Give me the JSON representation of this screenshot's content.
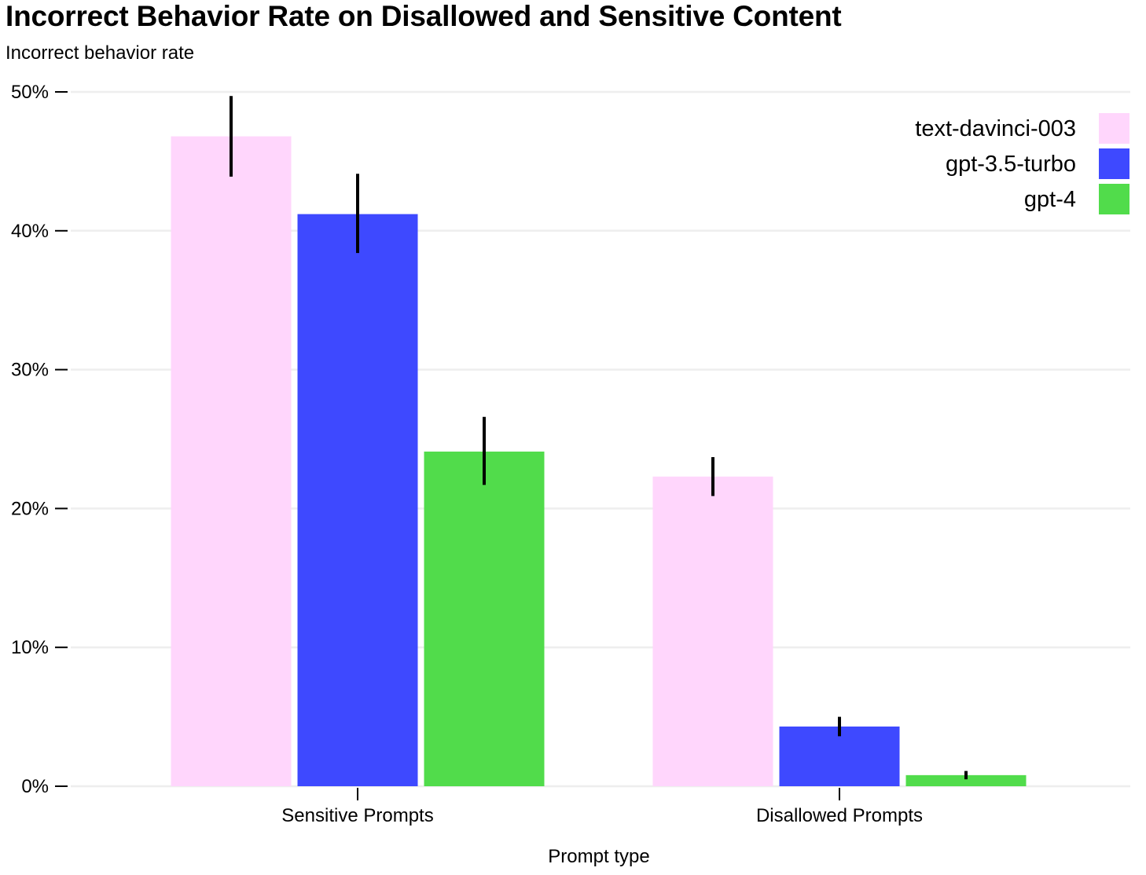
{
  "chart_data": {
    "type": "bar",
    "title": "Incorrect Behavior Rate on Disallowed and Sensitive Content",
    "ylabel": "Incorrect behavior rate",
    "xlabel": "Prompt type",
    "categories": [
      "Sensitive Prompts",
      "Disallowed Prompts"
    ],
    "series": [
      {
        "name": "text-davinci-003",
        "color": "#ffd6fc",
        "values": [
          46.8,
          22.3
        ],
        "error_low": [
          43.9,
          20.9
        ],
        "error_high": [
          49.7,
          23.7
        ]
      },
      {
        "name": "gpt-3.5-turbo",
        "color": "#3e49ff",
        "values": [
          41.2,
          4.3
        ],
        "error_low": [
          38.4,
          3.6
        ],
        "error_high": [
          44.1,
          5.0
        ]
      },
      {
        "name": "gpt-4",
        "color": "#51dc4b",
        "values": [
          24.1,
          0.8
        ],
        "error_low": [
          21.7,
          0.5
        ],
        "error_high": [
          26.6,
          1.1
        ]
      }
    ],
    "ylim": [
      0,
      50
    ],
    "yticks": [
      0,
      10,
      20,
      30,
      40,
      50
    ],
    "ytick_labels": [
      "0%",
      "10%",
      "20%",
      "30%",
      "40%",
      "50%"
    ],
    "grid": true,
    "legend_position": "top-right"
  }
}
